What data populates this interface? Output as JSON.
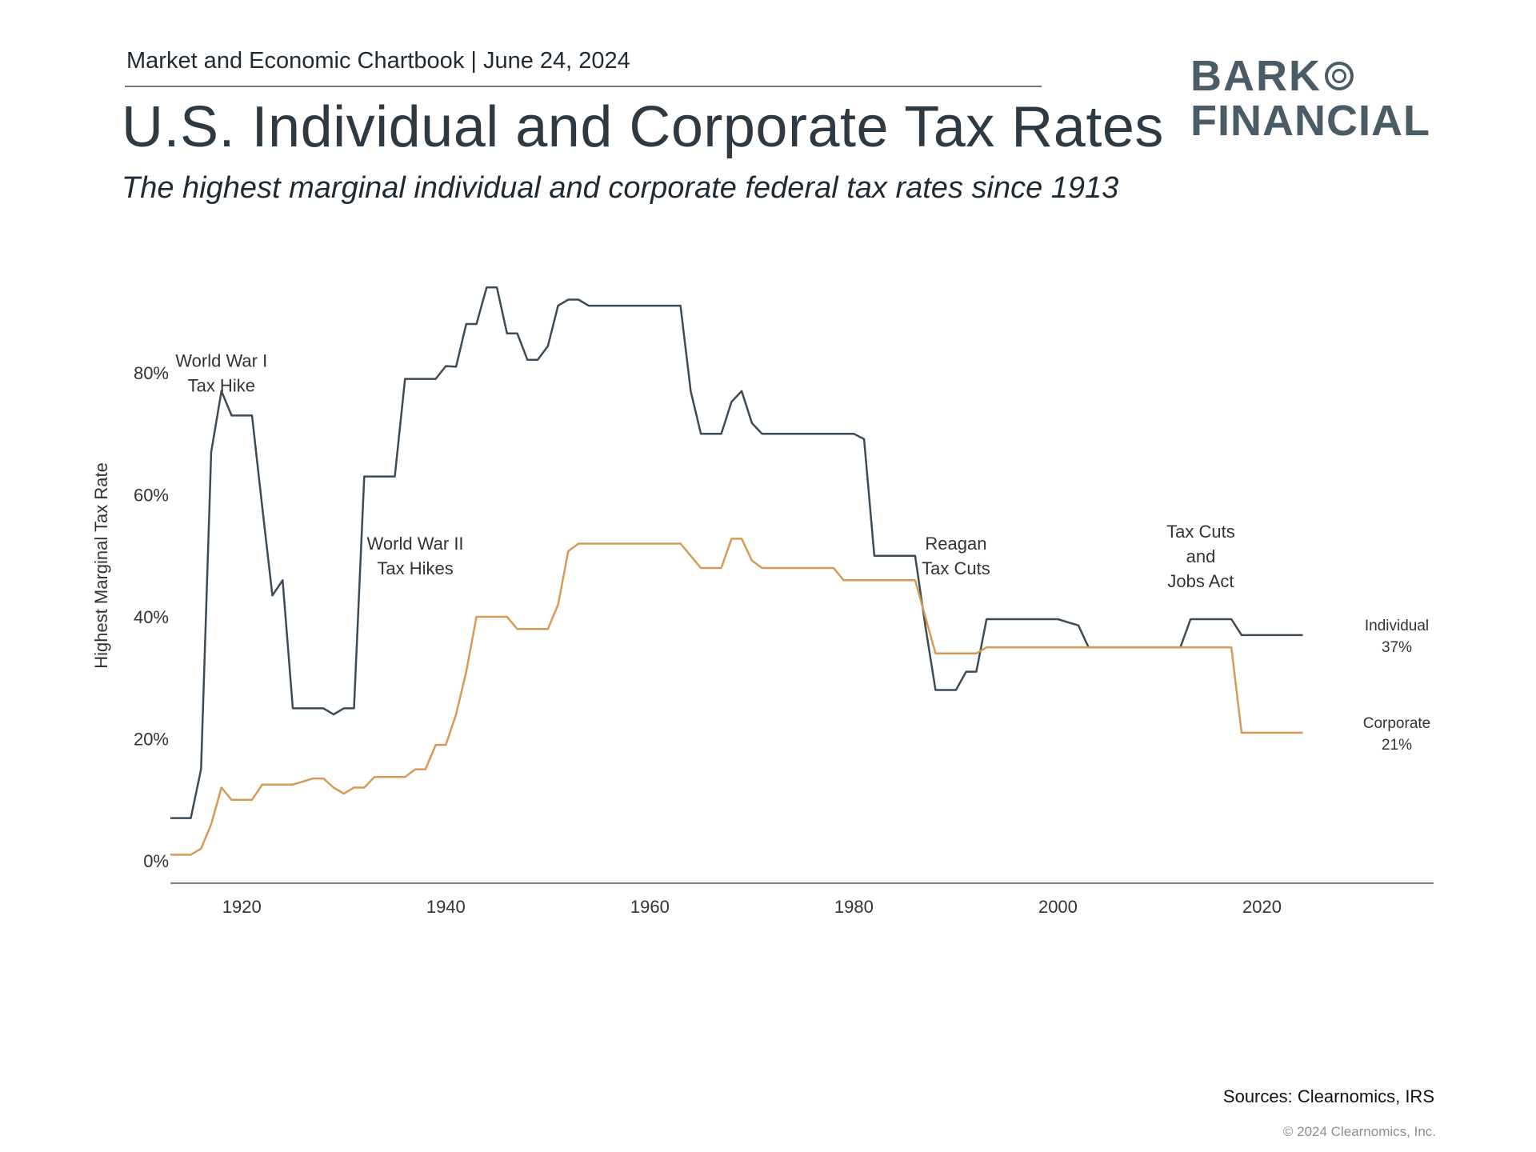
{
  "header": {
    "chartbook_line": "Market and Economic Chartbook | June 24, 2024",
    "title": "U.S. Individual and Corporate Tax Rates",
    "subtitle": "The highest marginal individual and corporate federal tax rates since 1913"
  },
  "logo": {
    "line1": "BARK",
    "line2": "FINANCIAL"
  },
  "footer": {
    "sources": "Sources: Clearnomics, IRS",
    "copyright": "© 2024 Clearnomics, Inc."
  },
  "colors": {
    "individual": "#3d4b57",
    "corporate": "#d69a55",
    "axis": "#555555",
    "text": "#4a4a4a"
  },
  "chart_data": {
    "type": "line",
    "title": "",
    "xlabel": "",
    "ylabel": "Highest Marginal Tax Rate",
    "xlim": [
      1913,
      2030
    ],
    "ylim": [
      0,
      96
    ],
    "x_ticks": [
      1920,
      1940,
      1960,
      1980,
      2000,
      2020
    ],
    "y_ticks": [
      0,
      20,
      40,
      60,
      80
    ],
    "y_tick_labels": [
      "0%",
      "20%",
      "40%",
      "60%",
      "80%"
    ],
    "grid": false,
    "series": [
      {
        "name": "Individual",
        "end_label": [
          "Individual",
          "37%"
        ],
        "points": [
          [
            1913,
            7
          ],
          [
            1915,
            7
          ],
          [
            1916,
            15
          ],
          [
            1917,
            67
          ],
          [
            1918,
            77
          ],
          [
            1919,
            73
          ],
          [
            1921,
            73
          ],
          [
            1922,
            58
          ],
          [
            1923,
            43.5
          ],
          [
            1924,
            46
          ],
          [
            1925,
            25
          ],
          [
            1928,
            25
          ],
          [
            1929,
            24
          ],
          [
            1930,
            25
          ],
          [
            1931,
            25
          ],
          [
            1932,
            63
          ],
          [
            1935,
            63
          ],
          [
            1936,
            79
          ],
          [
            1939,
            79
          ],
          [
            1940,
            81.1
          ],
          [
            1941,
            81
          ],
          [
            1942,
            88
          ],
          [
            1943,
            88
          ],
          [
            1944,
            94
          ],
          [
            1945,
            94
          ],
          [
            1946,
            86.45
          ],
          [
            1947,
            86.45
          ],
          [
            1948,
            82.13
          ],
          [
            1949,
            82.13
          ],
          [
            1950,
            84.36
          ],
          [
            1951,
            91
          ],
          [
            1952,
            92
          ],
          [
            1953,
            92
          ],
          [
            1954,
            91
          ],
          [
            1963,
            91
          ],
          [
            1964,
            77
          ],
          [
            1965,
            70
          ],
          [
            1967,
            70
          ],
          [
            1968,
            75.25
          ],
          [
            1969,
            77
          ],
          [
            1970,
            71.75
          ],
          [
            1971,
            70
          ],
          [
            1980,
            70
          ],
          [
            1981,
            69.13
          ],
          [
            1982,
            50
          ],
          [
            1986,
            50
          ],
          [
            1987,
            38.5
          ],
          [
            1988,
            28
          ],
          [
            1990,
            28
          ],
          [
            1991,
            31
          ],
          [
            1992,
            31
          ],
          [
            1993,
            39.6
          ],
          [
            2000,
            39.6
          ],
          [
            2001,
            39.1
          ],
          [
            2002,
            38.6
          ],
          [
            2003,
            35
          ],
          [
            2012,
            35
          ],
          [
            2013,
            39.6
          ],
          [
            2017,
            39.6
          ],
          [
            2018,
            37
          ],
          [
            2024,
            37
          ]
        ]
      },
      {
        "name": "Corporate",
        "end_label": [
          "Corporate",
          "21%"
        ],
        "points": [
          [
            1913,
            1
          ],
          [
            1915,
            1
          ],
          [
            1916,
            2
          ],
          [
            1917,
            6
          ],
          [
            1918,
            12
          ],
          [
            1919,
            10
          ],
          [
            1921,
            10
          ],
          [
            1922,
            12.5
          ],
          [
            1925,
            12.5
          ],
          [
            1926,
            13
          ],
          [
            1927,
            13.5
          ],
          [
            1928,
            13.5
          ],
          [
            1929,
            12
          ],
          [
            1930,
            11
          ],
          [
            1931,
            12
          ],
          [
            1932,
            12
          ],
          [
            1933,
            13.75
          ],
          [
            1936,
            13.75
          ],
          [
            1937,
            15
          ],
          [
            1938,
            15
          ],
          [
            1939,
            19
          ],
          [
            1940,
            19
          ],
          [
            1941,
            24
          ],
          [
            1942,
            31
          ],
          [
            1943,
            40
          ],
          [
            1946,
            40
          ],
          [
            1947,
            38
          ],
          [
            1950,
            38
          ],
          [
            1951,
            42
          ],
          [
            1952,
            50.75
          ],
          [
            1953,
            52
          ],
          [
            1963,
            52
          ],
          [
            1964,
            50
          ],
          [
            1965,
            48
          ],
          [
            1967,
            48
          ],
          [
            1968,
            52.8
          ],
          [
            1969,
            52.8
          ],
          [
            1970,
            49.2
          ],
          [
            1971,
            48
          ],
          [
            1978,
            48
          ],
          [
            1979,
            46
          ],
          [
            1986,
            46
          ],
          [
            1987,
            40
          ],
          [
            1988,
            34
          ],
          [
            1992,
            34
          ],
          [
            1993,
            35
          ],
          [
            2017,
            35
          ],
          [
            2018,
            21
          ],
          [
            2024,
            21
          ]
        ]
      }
    ],
    "annotations": [
      {
        "lines": [
          "World War I",
          "Tax Hike"
        ],
        "x": 1918,
        "y": 81
      },
      {
        "lines": [
          "World War II",
          "Tax Hikes"
        ],
        "x": 1937,
        "y": 51
      },
      {
        "lines": [
          "Reagan",
          "Tax Cuts"
        ],
        "x": 1990,
        "y": 51
      },
      {
        "lines": [
          "Tax Cuts",
          "and",
          "Jobs Act"
        ],
        "x": 2014,
        "y": 53
      }
    ]
  }
}
